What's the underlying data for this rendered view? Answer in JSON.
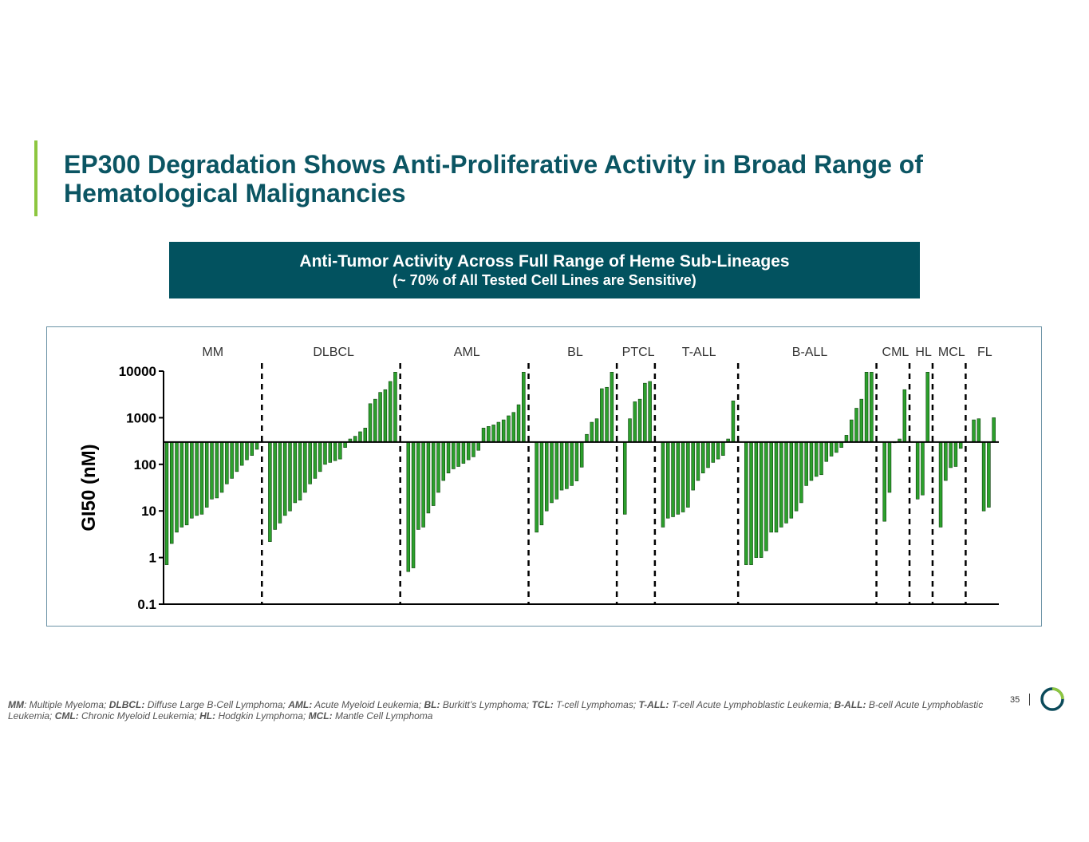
{
  "slide": {
    "title": "EP300 Degradation Shows Anti-Proliferative Activity in Broad Range of Hematological Malignancies",
    "banner_line1": "Anti-Tumor Activity Across Full Range of Heme Sub-Lineages",
    "banner_line2": "(~ 70% of All Tested Cell Lines are Sensitive)",
    "page_number": "35",
    "accent_color": "#8dc63f",
    "title_color": "#0b5563",
    "banner_color": "#02525f"
  },
  "chart_data": {
    "type": "bar",
    "title": "",
    "xlabel": "",
    "ylabel": "GI50 (nM)",
    "yscale": "log",
    "ylim": [
      0.1,
      10000
    ],
    "baseline": 300,
    "yticks": [
      "10000",
      "1000",
      "100",
      "10",
      "1",
      "0.1"
    ],
    "bar_color": "#2ca02c",
    "groups": [
      {
        "name": "MM",
        "values": [
          0.7,
          2,
          3.5,
          4.5,
          5,
          7,
          8,
          8.5,
          12,
          18,
          19,
          25,
          38,
          50,
          70,
          95,
          125,
          155,
          210
        ]
      },
      {
        "name": "DLBCL",
        "values": [
          2.2,
          4,
          5.5,
          8,
          10,
          15,
          17,
          25,
          38,
          50,
          70,
          100,
          110,
          120,
          130,
          230,
          350,
          400,
          500,
          600,
          2000,
          2500,
          3500,
          4000,
          6000,
          9500
        ]
      },
      {
        "name": "AML",
        "values": [
          0.5,
          0.6,
          4,
          4.5,
          9,
          13,
          25,
          45,
          65,
          80,
          90,
          105,
          125,
          145,
          200,
          600,
          650,
          700,
          800,
          900,
          1100,
          1300,
          1900,
          9500
        ]
      },
      {
        "name": "BL",
        "values": [
          3.5,
          5,
          10,
          15,
          18,
          28,
          30,
          35,
          44,
          87,
          440,
          800,
          950,
          4200,
          4500,
          9500
        ]
      },
      {
        "name": "PTCL",
        "values": [
          8.5,
          950,
          2200,
          2500,
          5500,
          6000
        ]
      },
      {
        "name": "T-ALL",
        "values": [
          4.5,
          7,
          7.5,
          8.5,
          9.5,
          12,
          28,
          45,
          65,
          85,
          110,
          130,
          155,
          350,
          2300
        ]
      },
      {
        "name": "B-ALL",
        "values": [
          0.7,
          0.7,
          1,
          1,
          1.4,
          3.5,
          3.5,
          4.5,
          5.5,
          7,
          10,
          15,
          35,
          45,
          55,
          60,
          115,
          150,
          180,
          230,
          420,
          900,
          1600,
          2500,
          9500,
          9500
        ]
      },
      {
        "name": "CML",
        "values": [
          6,
          25,
          290,
          350,
          4000
        ]
      },
      {
        "name": "HL",
        "values": [
          18,
          22,
          9500
        ]
      },
      {
        "name": "MCL",
        "values": [
          4.5,
          45,
          85,
          90,
          220
        ]
      },
      {
        "name": "FL",
        "values": [
          900,
          950,
          10,
          12,
          1000
        ]
      }
    ]
  },
  "footnote": [
    {
      "abbr": "MM",
      "text": ": Multiple Myeloma; "
    },
    {
      "abbr": "DLBCL:",
      "text": " Diffuse Large B-Cell Lymphoma; "
    },
    {
      "abbr": "AML:",
      "text": " Acute Myeloid Leukemia; "
    },
    {
      "abbr": "BL:",
      "text": " Burkitt’s Lymphoma; "
    },
    {
      "abbr": "TCL:",
      "text": " T-cell Lymphomas; "
    },
    {
      "abbr": "T-ALL:",
      "text": " T-cell Acute Lymphoblastic Leukemia; "
    },
    {
      "abbr": "B-ALL:",
      "text": " B-cell Acute Lymphoblastic Leukemia; "
    },
    {
      "abbr": "CML:",
      "text": " Chronic Myeloid Leukemia; "
    },
    {
      "abbr": "HL:",
      "text": " Hodgkin Lymphoma; "
    },
    {
      "abbr": "MCL:",
      "text": " Mantle Cell Lymphoma"
    }
  ]
}
